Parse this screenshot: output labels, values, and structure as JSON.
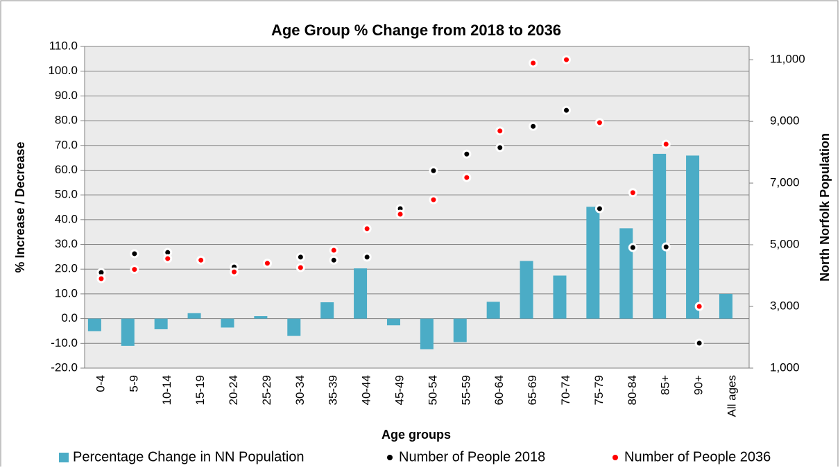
{
  "chart_data": {
    "type": "bar",
    "title": "Age Group % Change from 2018 to 2036",
    "x_label": "Age groups",
    "y_label": "% Increase / Decrease",
    "y2_label": "North Norfolk Population",
    "categories": [
      "0-4",
      "5-9",
      "10-14",
      "15-19",
      "20-24",
      "25-29",
      "30-34",
      "35-39",
      "40-44",
      "45-49",
      "50-54",
      "55-59",
      "60-64",
      "65-69",
      "70-74",
      "75-79",
      "80-84",
      "85+",
      "90+",
      "All ages"
    ],
    "series": [
      {
        "name": "Percentage Change in NN Population",
        "type": "bar",
        "axis": "y",
        "color": "#4bacc6",
        "values": [
          -5.1,
          -11.0,
          -4.3,
          2.2,
          -3.6,
          1.0,
          -7.0,
          6.6,
          20.3,
          -2.7,
          -12.4,
          -9.5,
          6.8,
          23.3,
          17.4,
          45.2,
          36.5,
          66.6,
          65.9,
          10.0
        ]
      },
      {
        "name": "Number of People 2018",
        "type": "scatter",
        "axis": "y2",
        "color": "#000000",
        "values": [
          4100,
          4710,
          4750,
          4500,
          4280,
          4400,
          4600,
          4500,
          4600,
          6170,
          7400,
          7940,
          8150,
          8840,
          9360,
          6170,
          4910,
          4930,
          1810,
          null
        ]
      },
      {
        "name": "Number of People 2036",
        "type": "scatter",
        "axis": "y2",
        "color": "#ff0000",
        "values": [
          3900,
          4200,
          4550,
          4500,
          4120,
          4400,
          4260,
          4820,
          5520,
          5990,
          6460,
          7180,
          8690,
          10890,
          11000,
          8960,
          6690,
          8260,
          3000,
          null
        ]
      }
    ],
    "ylim": [
      -20,
      110
    ],
    "yticks": [
      {
        "value": -20,
        "label": "-20.0"
      },
      {
        "value": -10,
        "label": "-10.0"
      },
      {
        "value": 0,
        "label": "0.0"
      },
      {
        "value": 10,
        "label": "10.0"
      },
      {
        "value": 20,
        "label": "20.0"
      },
      {
        "value": 30,
        "label": "30.0"
      },
      {
        "value": 40,
        "label": "40.0"
      },
      {
        "value": 50,
        "label": "50.0"
      },
      {
        "value": 60,
        "label": "60.0"
      },
      {
        "value": 70,
        "label": "70.0"
      },
      {
        "value": 80,
        "label": "80.0"
      },
      {
        "value": 90,
        "label": "90.0"
      },
      {
        "value": 100,
        "label": "100.0"
      },
      {
        "value": 110,
        "label": "110.0"
      }
    ],
    "y2lim": [
      1000,
      11430
    ],
    "y2ticks": [
      {
        "value": 1000,
        "label": "1,000"
      },
      {
        "value": 3000,
        "label": "3,000"
      },
      {
        "value": 5000,
        "label": "5,000"
      },
      {
        "value": 7000,
        "label": "7,000"
      },
      {
        "value": 9000,
        "label": "9,000"
      },
      {
        "value": 11000,
        "label": "11,000"
      }
    ],
    "grid": true,
    "legend": "bottom"
  }
}
